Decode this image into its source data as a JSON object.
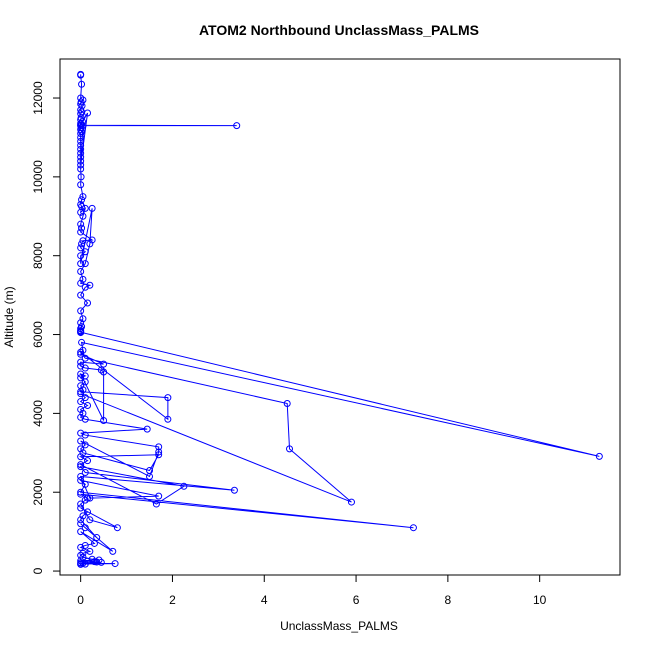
{
  "chart_data": {
    "type": "line",
    "title": "ATOM2 Northbound UnclassMass_PALMS",
    "xlabel": "UnclassMass_PALMS",
    "ylabel": "Altitude (m)",
    "xlim": [
      -0.45,
      11.75
    ],
    "ylim": [
      -100,
      12990
    ],
    "x_ticks": [
      0,
      2,
      4,
      6,
      8,
      10
    ],
    "y_ticks": [
      0,
      2000,
      4000,
      6000,
      8000,
      10000,
      12000
    ],
    "x_tick_labels": [
      "0",
      "2",
      "4",
      "6",
      "8",
      "10"
    ],
    "y_tick_labels": [
      "0",
      "2000",
      "4000",
      "6000",
      "8000",
      "10000",
      "12000"
    ],
    "grid": false,
    "legend": "none",
    "color": "#0000ff",
    "marker": "open-circle",
    "series": [
      {
        "x": [
          0.0,
          0.0,
          0.02,
          0.0,
          0.05,
          0.01,
          0.0,
          0.03,
          0.0,
          0.02,
          0.0,
          0.01,
          0.0,
          0.04,
          0.0,
          0.02,
          0.0,
          0.01,
          0.0,
          0.02,
          0.0,
          0.0,
          0.0,
          0.0,
          0.0,
          0.0,
          0.0,
          0.0,
          0.0,
          0.15,
          0.0,
          3.4,
          0.05,
          0.0,
          0.01,
          0.0,
          0.05,
          0.02,
          0.0,
          0.02,
          0.0,
          0.1,
          0.05,
          0.0,
          0.02,
          0.0,
          0.25,
          0.05,
          0.02,
          0.0,
          0.1,
          0.0,
          0.0,
          0.25,
          0.2,
          0.1,
          0.0,
          0.05,
          0.0,
          0.2,
          0.1,
          0.0,
          0.15,
          0.0,
          0.05,
          0.0,
          0.02,
          0.0,
          0.0,
          0.0,
          0.0,
          0.0,
          11.3,
          0.02,
          0.05,
          0.0,
          0.5,
          0.0,
          0.0,
          0.1,
          0.45,
          0.5,
          0.5,
          0.0,
          0.1,
          0.0,
          0.1,
          0.0,
          0.05,
          0.0,
          1.9,
          1.9,
          0.0,
          0.1,
          4.5,
          4.55,
          5.9,
          0.0,
          0.1,
          0.0,
          0.15,
          0.0,
          0.05,
          0.0,
          0.1,
          1.45,
          0.0,
          0.1,
          1.7,
          1.7,
          1.5,
          0.0,
          0.1,
          0.0,
          0.05,
          1.5,
          1.7,
          0.0,
          0.15,
          0.0,
          1.65,
          2.25,
          0.0,
          0.1,
          3.35,
          0.0,
          0.2,
          1.7,
          0.0,
          0.1,
          0.0,
          7.25,
          0.0,
          0.15,
          0.1,
          0.0,
          0.2,
          0.8,
          0.0,
          0.15,
          0.05,
          0.0,
          0.35,
          0.0,
          0.1,
          0.7,
          0.0,
          0.3,
          0.1,
          0.0,
          0.2,
          0.05,
          0.0,
          0.05,
          0.25,
          0.4,
          0.0,
          0.15,
          0.3,
          0.35,
          0.45,
          0.0,
          0.05,
          0.75,
          0.0,
          0.1,
          0.0
        ],
        "y": [
          12600,
          12580,
          12350,
          12000,
          11950,
          11900,
          11850,
          11800,
          11700,
          11650,
          11600,
          11500,
          11450,
          11400,
          11350,
          11320,
          11300,
          11250,
          11200,
          11150,
          11100,
          11000,
          10900,
          10800,
          10700,
          10600,
          10500,
          10400,
          10300,
          11620,
          11310,
          11300,
          11300,
          10200,
          10000,
          9800,
          9500,
          9420,
          9300,
          9250,
          9100,
          9200,
          9000,
          8800,
          8700,
          8600,
          8400,
          8380,
          8300,
          8200,
          8100,
          8000,
          7800,
          9200,
          8300,
          7800,
          7600,
          7400,
          7300,
          7250,
          7200,
          7000,
          6800,
          6600,
          6400,
          6300,
          6200,
          6150,
          6100,
          6050,
          6080,
          6060,
          2910,
          5800,
          5600,
          5500,
          5250,
          5300,
          5200,
          5150,
          5100,
          5050,
          3820,
          5000,
          4950,
          4900,
          4800,
          4700,
          4600,
          4550,
          4400,
          3850,
          5550,
          5400,
          4250,
          3100,
          1750,
          4500,
          4400,
          4300,
          4200,
          4100,
          4000,
          3900,
          3850,
          3600,
          3500,
          3450,
          3150,
          3020,
          2400,
          3300,
          3200,
          3100,
          3000,
          2550,
          2950,
          2900,
          2800,
          2700,
          1700,
          2150,
          2650,
          2500,
          2050,
          2400,
          1850,
          1900,
          2300,
          2200,
          2000,
          1100,
          1950,
          1850,
          1800,
          1700,
          1300,
          1100,
          1600,
          1500,
          1400,
          1300,
          850,
          1200,
          1100,
          500,
          1000,
          700,
          650,
          600,
          500,
          450,
          400,
          350,
          300,
          280,
          260,
          250,
          240,
          230,
          220,
          210,
          200,
          190,
          180,
          175,
          170
        ]
      }
    ]
  }
}
